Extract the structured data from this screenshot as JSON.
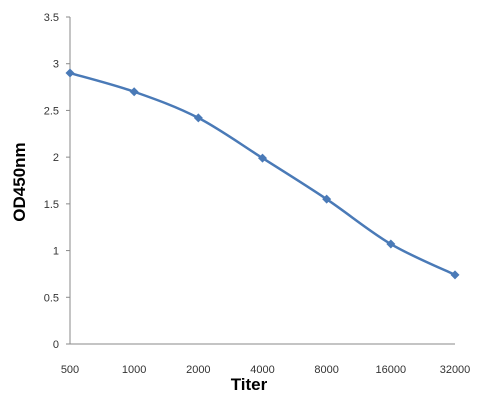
{
  "chart_data": {
    "type": "line",
    "xlabel": "Titer",
    "ylabel": "OD450nm",
    "categories": [
      "500",
      "1000",
      "2000",
      "4000",
      "8000",
      "16000",
      "32000"
    ],
    "series": [
      {
        "values": [
          2.9,
          2.7,
          2.42,
          1.99,
          1.55,
          1.07,
          0.74
        ],
        "color": "#4a7ab7"
      }
    ],
    "ylim": [
      0,
      3.5
    ],
    "yticks": [
      "0",
      "0.5",
      "1",
      "1.5",
      "2",
      "2.5",
      "3",
      "3.5"
    ],
    "marker": "diamond",
    "smooth": true,
    "grid": false,
    "legend": "none",
    "axis_color": "#8a8a8a"
  }
}
